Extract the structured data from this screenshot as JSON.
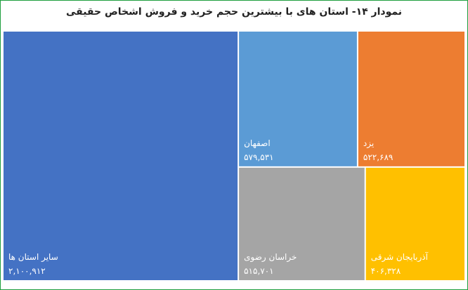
{
  "chart_data": {
    "type": "treemap",
    "title": "نمودار ۱۴- استان های با بیشترین حجم خرید و فروش اشخاص حقیقی",
    "items": [
      {
        "name": "سایر استان ها",
        "value_label": "۲,۱۰۰,۹۱۲",
        "value": 2100912,
        "color": "#4472c4"
      },
      {
        "name": "اصفهان",
        "value_label": "۵۷۹,۵۳۱",
        "value": 579531,
        "color": "#5b9bd5"
      },
      {
        "name": "یزد",
        "value_label": "۵۲۲,۶۸۹",
        "value": 522689,
        "color": "#ed7d31"
      },
      {
        "name": "خراسان رضوی",
        "value_label": "۵۱۵,۷۰۱",
        "value": 515701,
        "color": "#a5a5a5"
      },
      {
        "name": "آذربایجان شرقی",
        "value_label": "۴۰۶,۳۲۸",
        "value": 406328,
        "color": "#ffc000"
      }
    ]
  }
}
